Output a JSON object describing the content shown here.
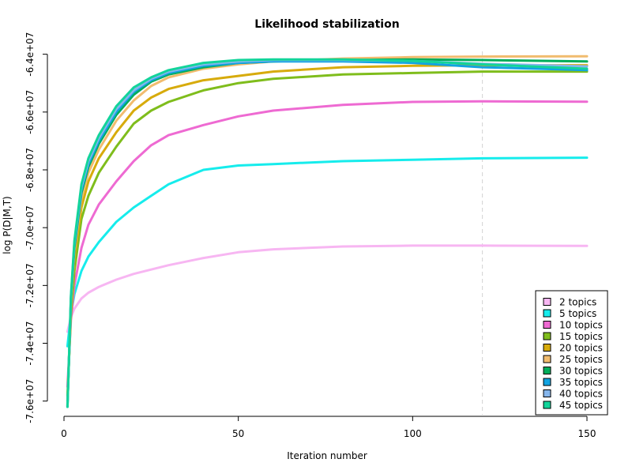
{
  "chart_data": {
    "type": "line",
    "title": "Likelihood stabilization",
    "xlabel": "Iteration number",
    "ylabel": "log P(D|M,T)",
    "xlim": [
      0,
      150
    ],
    "ylim": [
      -76200000,
      -63900000
    ],
    "x_ticks": [
      0,
      50,
      100,
      150
    ],
    "x_tick_labels": [
      "0",
      "50",
      "100",
      "150"
    ],
    "y_ticks": [
      -76000000,
      -74000000,
      -72000000,
      -70000000,
      -68000000,
      -66000000,
      -64000000
    ],
    "y_tick_labels": [
      "-7.6e+07",
      "-7.4e+07",
      "-7.2e+07",
      "-7.0e+07",
      "-6.8e+07",
      "-6.6e+07",
      "-6.4e+07"
    ],
    "reference_line": {
      "x": 120,
      "style": "dashed",
      "color": "#d3d3d3"
    },
    "legend_position": "bottom-right",
    "x": [
      1,
      2,
      3,
      5,
      7,
      10,
      15,
      20,
      25,
      30,
      40,
      50,
      60,
      80,
      100,
      120,
      150
    ],
    "series": [
      {
        "name": "2 topics",
        "color": "#f7b6f2",
        "values": [
          -73600000,
          -73100000,
          -72800000,
          -72450000,
          -72250000,
          -72050000,
          -71800000,
          -71600000,
          -71450000,
          -71300000,
          -71050000,
          -70850000,
          -70750000,
          -70650000,
          -70620000,
          -70620000,
          -70630000
        ]
      },
      {
        "name": "5 topics",
        "color": "#16ecec",
        "values": [
          -74100000,
          -73000000,
          -72300000,
          -71500000,
          -71000000,
          -70500000,
          -69800000,
          -69300000,
          -68900000,
          -68500000,
          -68000000,
          -67850000,
          -67800000,
          -67700000,
          -67650000,
          -67600000,
          -67580000
        ]
      },
      {
        "name": "10 topics",
        "color": "#ee6ad2",
        "values": [
          -75500000,
          -73200000,
          -72000000,
          -70700000,
          -69900000,
          -69200000,
          -68400000,
          -67700000,
          -67150000,
          -66800000,
          -66450000,
          -66150000,
          -65950000,
          -65750000,
          -65650000,
          -65630000,
          -65640000
        ]
      },
      {
        "name": "15 topics",
        "color": "#7fbd1c",
        "values": [
          -75800000,
          -73000000,
          -71500000,
          -69700000,
          -68900000,
          -68100000,
          -67200000,
          -66400000,
          -65950000,
          -65650000,
          -65250000,
          -65000000,
          -64850000,
          -64700000,
          -64650000,
          -64600000,
          -64600000
        ]
      },
      {
        "name": "20 topics",
        "color": "#d7ab0c",
        "values": [
          -76000000,
          -72800000,
          -71000000,
          -69300000,
          -68400000,
          -67600000,
          -66700000,
          -65950000,
          -65500000,
          -65200000,
          -64900000,
          -64750000,
          -64600000,
          -64450000,
          -64400000,
          -64380000,
          -64380000
        ]
      },
      {
        "name": "25 topics",
        "color": "#f1bc6f",
        "values": [
          -76100000,
          -72600000,
          -70800000,
          -69000000,
          -68100000,
          -67300000,
          -66300000,
          -65600000,
          -65100000,
          -64800000,
          -64500000,
          -64350000,
          -64250000,
          -64150000,
          -64100000,
          -64080000,
          -64070000
        ]
      },
      {
        "name": "30 topics",
        "color": "#00ad5a",
        "values": [
          -76150000,
          -72500000,
          -70700000,
          -68800000,
          -67900000,
          -67100000,
          -66100000,
          -65400000,
          -64950000,
          -64700000,
          -64450000,
          -64300000,
          -64250000,
          -64200000,
          -64180000,
          -64200000,
          -64250000
        ]
      },
      {
        "name": "35 topics",
        "color": "#12a3e1",
        "values": [
          -76200000,
          -72450000,
          -70600000,
          -68700000,
          -67800000,
          -67000000,
          -66000000,
          -65300000,
          -64900000,
          -64650000,
          -64400000,
          -64300000,
          -64250000,
          -64250000,
          -64300000,
          -64450000,
          -64550000
        ]
      },
      {
        "name": "40 topics",
        "color": "#86b6ec",
        "values": [
          -76200000,
          -72400000,
          -70500000,
          -68600000,
          -67700000,
          -66900000,
          -65900000,
          -65250000,
          -64850000,
          -64600000,
          -64350000,
          -64250000,
          -64200000,
          -64200000,
          -64230000,
          -64330000,
          -64420000
        ]
      },
      {
        "name": "45 topics",
        "color": "#12d49a",
        "values": [
          -76200000,
          -72350000,
          -70450000,
          -68500000,
          -67600000,
          -66800000,
          -65800000,
          -65150000,
          -64800000,
          -64550000,
          -64300000,
          -64200000,
          -64180000,
          -64180000,
          -64230000,
          -64350000,
          -64500000
        ]
      }
    ]
  }
}
